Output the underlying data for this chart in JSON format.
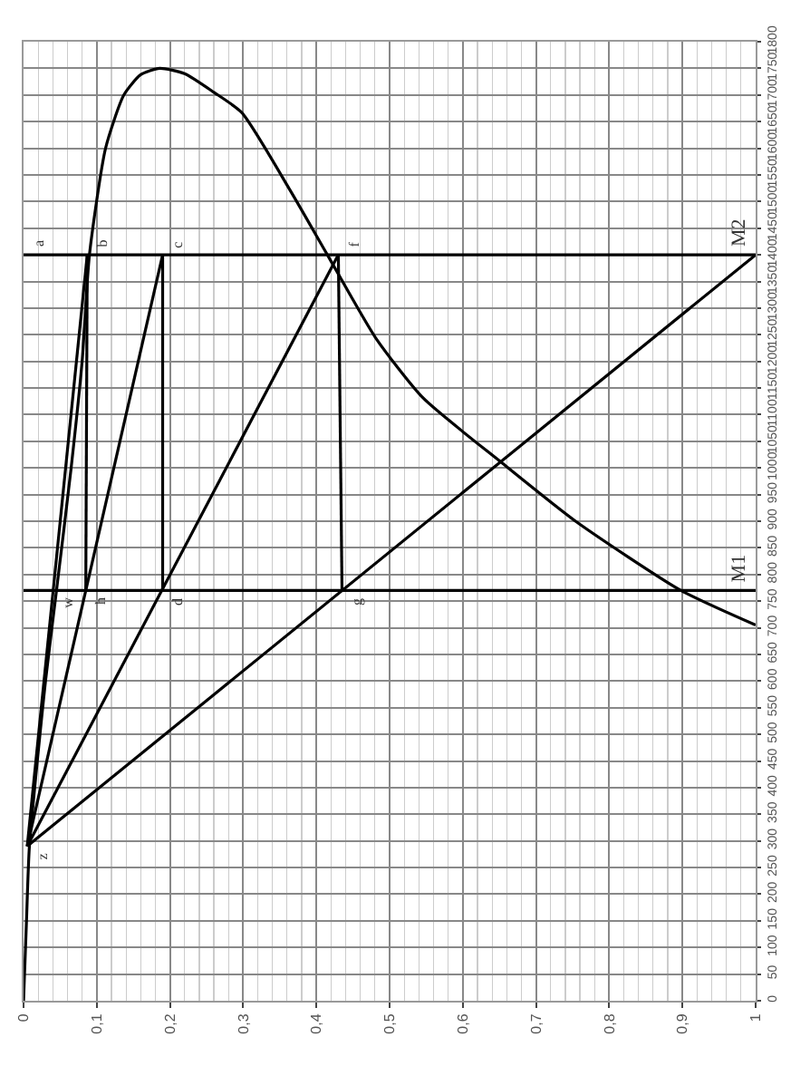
{
  "chart_data": {
    "type": "line",
    "marker": "none",
    "line_style": "solid",
    "grid": true,
    "xlim": [
      0,
      1
    ],
    "ylim": [
      0,
      1800
    ],
    "xticks": [
      0,
      {
        "value": 0.1,
        "label": "0,1"
      },
      {
        "value": 0.2,
        "label": "0,2"
      },
      {
        "value": 0.3,
        "label": "0,3"
      },
      {
        "value": 0.4,
        "label": "0,4"
      },
      {
        "value": 0.5,
        "label": "0,5"
      },
      {
        "value": 0.6,
        "label": "0,6"
      },
      {
        "value": 0.7,
        "label": "0,7"
      },
      {
        "value": 0.8,
        "label": "0,8"
      },
      {
        "value": 0.9,
        "label": "0,9"
      },
      1
    ],
    "yticks": [
      0,
      50,
      100,
      150,
      200,
      250,
      300,
      350,
      400,
      450,
      500,
      550,
      600,
      650,
      700,
      750,
      800,
      850,
      900,
      950,
      1000,
      1050,
      1100,
      1150,
      1200,
      1250,
      1300,
      1350,
      1400,
      1450,
      1500,
      1550,
      1600,
      1650,
      1700,
      1750,
      1800
    ],
    "series": [
      {
        "color": "#000000",
        "x": [
          0,
          0.004,
          0.008,
          0.03,
          0.045,
          0.065,
          0.08,
          0.09,
          0.112,
          0.137,
          0.16,
          0.186,
          0.22,
          0.26,
          0.298,
          0.365,
          0.415,
          0.481,
          0.546,
          0.653,
          0.754,
          0.898,
          1.0
        ],
        "values": [
          0,
          150,
          290,
          600,
          770,
          1000,
          1200,
          1400,
          1600,
          1700,
          1738,
          1750,
          1740,
          1705,
          1667,
          1519,
          1400,
          1244,
          1131,
          1010,
          900,
          770,
          705
        ]
      },
      {
        "color": "#000000",
        "x": [
          0,
          1
        ],
        "values": [
          1400,
          1400
        ]
      },
      {
        "color": "#000000",
        "x": [
          0,
          1
        ],
        "values": [
          770,
          770
        ]
      },
      {
        "color": "#000000",
        "x": [
          0.005,
          1.0
        ],
        "values": [
          290,
          1400
        ]
      },
      {
        "color": "#000000",
        "x": [
          0.005,
          0.43
        ],
        "values": [
          290,
          1400
        ]
      },
      {
        "color": "#000000",
        "x": [
          0.005,
          0.19
        ],
        "values": [
          290,
          1400
        ]
      },
      {
        "color": "#000000",
        "x": [
          0.005,
          0.087
        ],
        "values": [
          290,
          1400
        ]
      },
      {
        "color": "#000000",
        "x": [
          0.43,
          0.435
        ],
        "values": [
          1400,
          770
        ]
      },
      {
        "color": "#000000",
        "x": [
          0.19,
          0.19
        ],
        "values": [
          1400,
          770
        ]
      },
      {
        "color": "#000000",
        "x": [
          0.087,
          0.085
        ],
        "values": [
          1400,
          770
        ]
      }
    ],
    "annotations": [
      {
        "text": "a",
        "x": 0,
        "y": 1400
      },
      {
        "text": "b",
        "x": 0.087,
        "y": 1400
      },
      {
        "text": "c",
        "x": 0.19,
        "y": 1400
      },
      {
        "text": "f",
        "x": 0.43,
        "y": 1400
      },
      {
        "text": "w",
        "x": 0.04,
        "y": 770
      },
      {
        "text": "h",
        "x": 0.085,
        "y": 770
      },
      {
        "text": "d",
        "x": 0.19,
        "y": 770
      },
      {
        "text": "g",
        "x": 0.435,
        "y": 770
      },
      {
        "text": "z",
        "x": 0.005,
        "y": 290
      },
      {
        "text": "M2",
        "x": 1,
        "y": 1400
      },
      {
        "text": "M1",
        "x": 1,
        "y": 770
      }
    ]
  }
}
